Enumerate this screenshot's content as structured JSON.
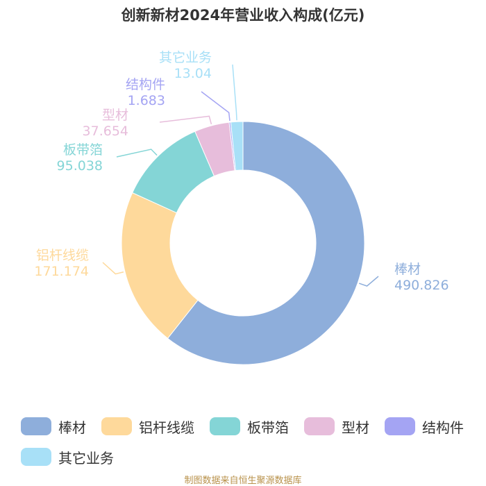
{
  "chart_data": {
    "type": "pie",
    "title": "创新新材2024年营业收入构成(亿元)",
    "categories": [
      "棒材",
      "铝杆线缆",
      "板带箔",
      "型材",
      "结构件",
      "其它业务"
    ],
    "values": [
      490.826,
      171.174,
      95.038,
      37.654,
      1.683,
      13.04
    ],
    "value_labels": [
      "490.826",
      "171.174",
      "95.038",
      "37.654",
      "1.683",
      "13.04"
    ],
    "colors": [
      "#8eaedb",
      "#fed99b",
      "#84d5d6",
      "#e7bddb",
      "#a4a4f3",
      "#a8e0f7"
    ],
    "donut": true,
    "legend_position": "bottom"
  },
  "source_text": "制图数据来自恒生聚源数据库"
}
